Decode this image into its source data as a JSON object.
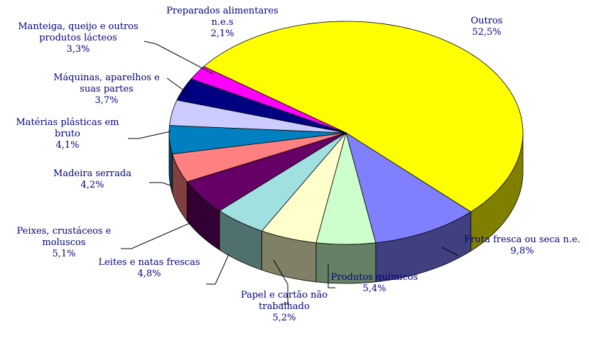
{
  "chart_data": {
    "type": "pie3d",
    "categories": [
      "Outros",
      "Fruta fresca ou seca n.e.",
      "Produtos químicos",
      "Papel e cartão não trabalhado",
      "Leites e natas frescas",
      "Peixes, crustáceos e moluscos",
      "Madeira serrada",
      "Matérias plásticas em bruto",
      "Máquinas, aparelhos e suas partes",
      "Manteiga, queijo e outros produtos lácteos",
      "Preparados alimentares n.e.s"
    ],
    "values": [
      52.5,
      9.8,
      5.4,
      5.2,
      4.8,
      5.1,
      4.2,
      4.1,
      3.7,
      3.3,
      2.1
    ],
    "value_labels": [
      "52,5%",
      "9,8%",
      "5,4%",
      "5,2%",
      "4,8%",
      "5,1%",
      "4,2%",
      "4,1%",
      "3,7%",
      "3,3%",
      "2,1%"
    ],
    "colors": [
      "#ffff00",
      "#8080ff",
      "#ccffcc",
      "#ffffcc",
      "#a0e0e0",
      "#660066",
      "#ff8080",
      "#0080c0",
      "#ccccff",
      "#000080",
      "#ff00ff"
    ]
  }
}
